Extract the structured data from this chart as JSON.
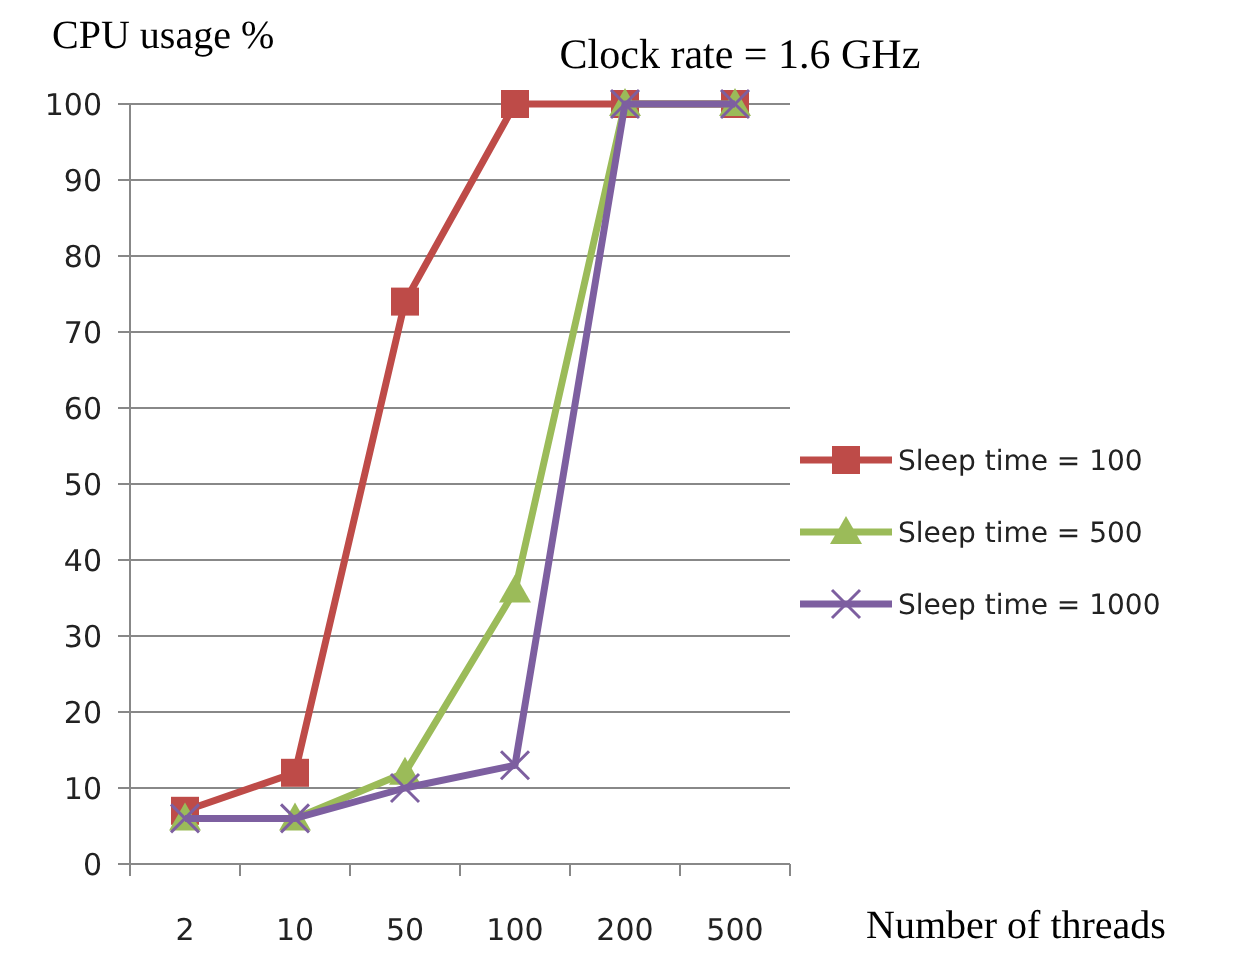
{
  "chart_data": {
    "type": "line",
    "title": "Clock rate = 1.6 GHz",
    "ylabel": "CPU usage %",
    "xlabel": "Number of threads",
    "categories": [
      "2",
      "10",
      "50",
      "100",
      "200",
      "500"
    ],
    "ylim": [
      0,
      100
    ],
    "yticks": [
      0,
      10,
      20,
      30,
      40,
      50,
      60,
      70,
      80,
      90,
      100
    ],
    "grid": "y",
    "legend": "right",
    "series": [
      {
        "name": "Sleep time = 100",
        "color": "#be4b48",
        "marker": "square",
        "values": [
          7,
          12,
          74,
          100,
          100,
          100
        ]
      },
      {
        "name": "Sleep time = 500",
        "color": "#9bbb59",
        "marker": "triangle",
        "values": [
          6,
          6,
          12,
          36,
          100,
          100
        ]
      },
      {
        "name": "Sleep time = 1000",
        "color": "#7d5fa0",
        "marker": "cross",
        "values": [
          6,
          6,
          10,
          13,
          100,
          100
        ]
      }
    ]
  }
}
